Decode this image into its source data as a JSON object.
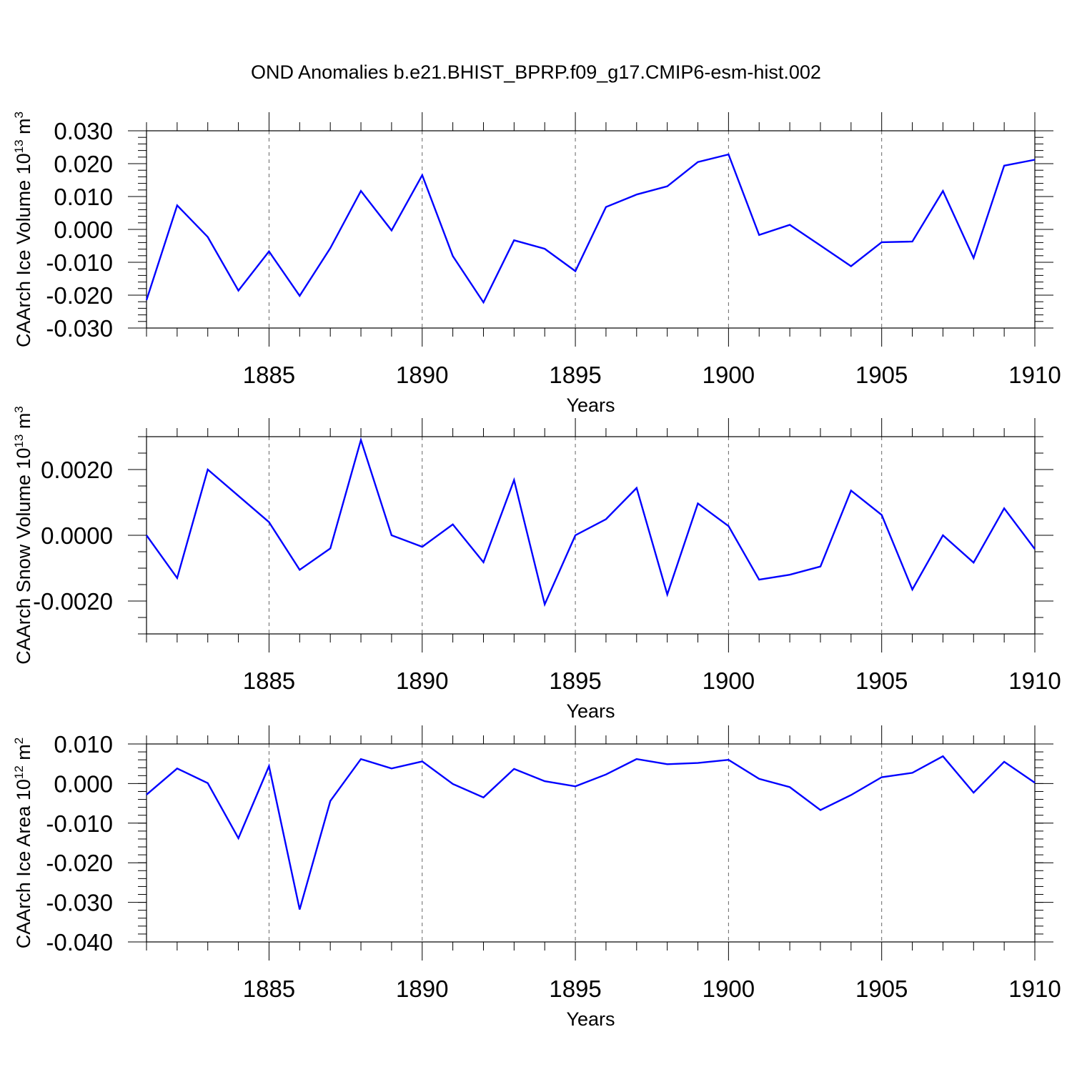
{
  "figure_title": "OND Anomalies b.e21.BHIST_BPRP.f09_g17.CMIP6-esm-hist.002",
  "colors": {
    "series": "#0000ff",
    "axis": "#000000",
    "grid": "#000000"
  },
  "chart_data": [
    {
      "type": "line",
      "title": "",
      "xlabel": "Years",
      "ylabel": "CAArch Ice Volume 10",
      "ylabel_exp": "13",
      "ylabel_unit": "m",
      "ylabel_unit_exp": "3",
      "xlim": [
        1881,
        1910
      ],
      "ylim": [
        -0.03,
        0.03
      ],
      "x_ticks": [
        1885,
        1890,
        1895,
        1900,
        1905,
        1910
      ],
      "x_tick_labels": [
        "1885",
        "1890",
        "1895",
        "1900",
        "1905",
        "1910"
      ],
      "y_ticks": [
        -0.03,
        -0.02,
        -0.01,
        0.0,
        0.01,
        0.02,
        0.03
      ],
      "y_tick_labels": [
        "-0.030",
        "-0.020",
        "-0.010",
        "0.000",
        "0.010",
        "0.020",
        "0.030"
      ],
      "y_minor_step": 0.002,
      "grid_x": true,
      "x": [
        1881,
        1882,
        1883,
        1884,
        1885,
        1886,
        1887,
        1888,
        1889,
        1890,
        1891,
        1892,
        1893,
        1894,
        1895,
        1896,
        1897,
        1898,
        1899,
        1900,
        1901,
        1902,
        1903,
        1904,
        1905,
        1906,
        1907,
        1908,
        1909,
        1910
      ],
      "values": [
        -0.0215,
        0.0073,
        -0.0023,
        -0.0186,
        -0.0067,
        -0.0202,
        -0.0057,
        0.0117,
        -0.0003,
        0.0165,
        -0.0081,
        -0.0222,
        -0.0033,
        -0.0059,
        -0.0127,
        0.0068,
        0.0106,
        0.0131,
        0.0205,
        0.0228,
        -0.0017,
        0.0014,
        -0.0049,
        -0.0112,
        -0.0039,
        -0.0037,
        0.0117,
        -0.0087,
        0.0194,
        0.0212
      ]
    },
    {
      "type": "line",
      "title": "",
      "xlabel": "Years",
      "ylabel": "CAArch Snow Volume 10",
      "ylabel_exp": "13",
      "ylabel_unit": "m",
      "ylabel_unit_exp": "3",
      "xlim": [
        1881,
        1910
      ],
      "ylim": [
        -0.003,
        0.003
      ],
      "x_ticks": [
        1885,
        1890,
        1895,
        1900,
        1905,
        1910
      ],
      "x_tick_labels": [
        "1885",
        "1890",
        "1895",
        "1900",
        "1905",
        "1910"
      ],
      "y_ticks": [
        -0.002,
        0.0,
        0.002
      ],
      "y_tick_labels": [
        "-0.0020",
        "0.0000",
        "0.0020"
      ],
      "y_minor_step": 0.0005,
      "grid_x": true,
      "x": [
        1881,
        1882,
        1883,
        1884,
        1885,
        1886,
        1887,
        1888,
        1889,
        1890,
        1891,
        1892,
        1893,
        1894,
        1895,
        1896,
        1897,
        1898,
        1899,
        1900,
        1901,
        1902,
        1903,
        1904,
        1905,
        1906,
        1907,
        1908,
        1909,
        1910
      ],
      "values": [
        0.0,
        -0.0013,
        0.002,
        0.0012,
        0.0004,
        -0.00105,
        -0.0004,
        0.0029,
        0.0,
        -0.00035,
        0.00033,
        -0.00082,
        0.00168,
        -0.0021,
        0.0,
        0.00049,
        0.00144,
        -0.0018,
        0.00097,
        0.00028,
        -0.00135,
        -0.0012,
        -0.00095,
        0.00136,
        0.00062,
        -0.00165,
        0.0,
        -0.00083,
        0.00082,
        -0.00042
      ]
    },
    {
      "type": "line",
      "title": "",
      "xlabel": "Years",
      "ylabel": "CAArch Ice Area 10",
      "ylabel_exp": "12",
      "ylabel_unit": "m",
      "ylabel_unit_exp": "2",
      "xlim": [
        1881,
        1910
      ],
      "ylim": [
        -0.04,
        0.01
      ],
      "x_ticks": [
        1885,
        1890,
        1895,
        1900,
        1905,
        1910
      ],
      "x_tick_labels": [
        "1885",
        "1890",
        "1895",
        "1900",
        "1905",
        "1910"
      ],
      "y_ticks": [
        -0.04,
        -0.03,
        -0.02,
        -0.01,
        0.0,
        0.01
      ],
      "y_tick_labels": [
        "-0.040",
        "-0.030",
        "-0.020",
        "-0.010",
        "0.000",
        "0.010"
      ],
      "y_minor_step": 0.002,
      "grid_x": true,
      "x": [
        1881,
        1882,
        1883,
        1884,
        1885,
        1886,
        1887,
        1888,
        1889,
        1890,
        1891,
        1892,
        1893,
        1894,
        1895,
        1896,
        1897,
        1898,
        1899,
        1900,
        1901,
        1902,
        1903,
        1904,
        1905,
        1906,
        1907,
        1908,
        1909,
        1910
      ],
      "values": [
        -0.0028,
        0.0038,
        0.0001,
        -0.0138,
        0.0044,
        -0.0318,
        -0.0044,
        0.0062,
        0.0038,
        0.0056,
        -0.0001,
        -0.0035,
        0.0037,
        0.0006,
        -0.0007,
        0.0023,
        0.0062,
        0.0049,
        0.0052,
        0.006,
        0.0012,
        -0.0009,
        -0.0067,
        -0.0029,
        0.0016,
        0.0027,
        0.0069,
        -0.0023,
        0.0055,
        0.0002
      ]
    }
  ]
}
